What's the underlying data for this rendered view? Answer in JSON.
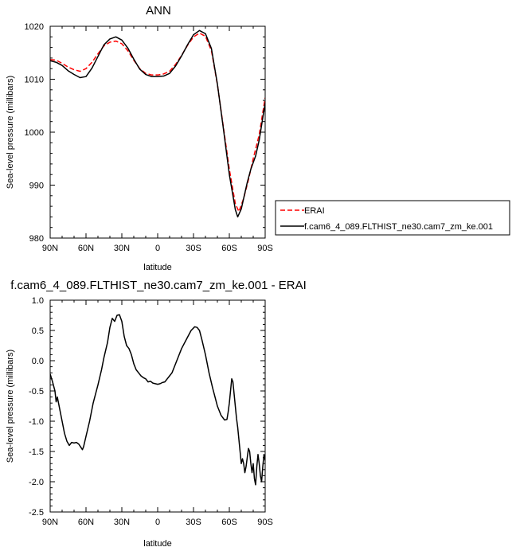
{
  "chart_data": [
    {
      "type": "line",
      "title": "ANN",
      "xlabel": "latitude",
      "ylabel": "Sea-level pressure (millibars)",
      "xlim": [
        -90,
        90
      ],
      "ylim": [
        980,
        1020
      ],
      "x_ticks": [
        -90,
        -60,
        -30,
        0,
        30,
        60,
        90
      ],
      "x_tick_labels": [
        "90N",
        "60N",
        "30N",
        "0",
        "30S",
        "60S",
        "90S"
      ],
      "y_ticks": [
        980,
        990,
        1000,
        1010,
        1020
      ],
      "x_note": "x increases from 90N (left) to 90S (right); negative = north",
      "legend_position": "right, outside plot",
      "series": [
        {
          "name": "ERAI",
          "color": "#ff0000",
          "style": "dashed",
          "points": [
            [
              -90,
              1013.7
            ],
            [
              -85,
              1013.6
            ],
            [
              -80,
              1013.0
            ],
            [
              -75,
              1012.3
            ],
            [
              -70,
              1011.8
            ],
            [
              -65,
              1011.5
            ],
            [
              -60,
              1012.0
            ],
            [
              -55,
              1013.2
            ],
            [
              -50,
              1014.8
            ],
            [
              -45,
              1016.3
            ],
            [
              -40,
              1017.0
            ],
            [
              -35,
              1017.2
            ],
            [
              -30,
              1016.7
            ],
            [
              -25,
              1015.4
            ],
            [
              -20,
              1013.6
            ],
            [
              -15,
              1012.0
            ],
            [
              -10,
              1011.1
            ],
            [
              -5,
              1010.8
            ],
            [
              0,
              1010.8
            ],
            [
              5,
              1011.0
            ],
            [
              10,
              1011.5
            ],
            [
              15,
              1012.8
            ],
            [
              20,
              1014.5
            ],
            [
              25,
              1016.4
            ],
            [
              30,
              1018.0
            ],
            [
              35,
              1018.7
            ],
            [
              40,
              1018.1
            ],
            [
              45,
              1015.4
            ],
            [
              50,
              1009.0
            ],
            [
              55,
              1001.0
            ],
            [
              60,
              993.0
            ],
            [
              65,
              986.5
            ],
            [
              68,
              985.0
            ],
            [
              72,
              987.5
            ],
            [
              76,
              991.0
            ],
            [
              80,
              995.0
            ],
            [
              85,
              999.5
            ],
            [
              90,
              1006.5
            ]
          ]
        },
        {
          "name": "f.cam6_4_089.FLTHIST_ne30.cam7_zm_ke.001",
          "color": "#000000",
          "style": "solid",
          "points": [
            [
              -90,
              1013.5
            ],
            [
              -85,
              1013.2
            ],
            [
              -80,
              1012.6
            ],
            [
              -75,
              1011.6
            ],
            [
              -70,
              1010.9
            ],
            [
              -65,
              1010.3
            ],
            [
              -60,
              1010.5
            ],
            [
              -55,
              1012.1
            ],
            [
              -50,
              1014.3
            ],
            [
              -45,
              1016.5
            ],
            [
              -40,
              1017.6
            ],
            [
              -35,
              1018.0
            ],
            [
              -30,
              1017.4
            ],
            [
              -25,
              1015.9
            ],
            [
              -20,
              1013.8
            ],
            [
              -15,
              1011.9
            ],
            [
              -10,
              1010.9
            ],
            [
              -5,
              1010.5
            ],
            [
              0,
              1010.5
            ],
            [
              5,
              1010.6
            ],
            [
              10,
              1011.1
            ],
            [
              15,
              1012.5
            ],
            [
              20,
              1014.4
            ],
            [
              25,
              1016.5
            ],
            [
              30,
              1018.4
            ],
            [
              35,
              1019.2
            ],
            [
              40,
              1018.6
            ],
            [
              45,
              1015.8
            ],
            [
              50,
              1009.1
            ],
            [
              55,
              1000.7
            ],
            [
              60,
              992.0
            ],
            [
              65,
              985.4
            ],
            [
              67,
              984.0
            ],
            [
              70,
              985.5
            ],
            [
              75,
              990.5
            ],
            [
              78,
              993.0
            ],
            [
              82,
              995.5
            ],
            [
              85,
              998.5
            ],
            [
              90,
              1005.5
            ]
          ]
        }
      ]
    },
    {
      "type": "line",
      "title": "f.cam6_4_089.FLTHIST_ne30.cam7_zm_ke.001 - ERAI",
      "xlabel": "latitude",
      "ylabel": "Sea-level pressure (millibars)",
      "xlim": [
        -90,
        90
      ],
      "ylim": [
        -2.5,
        1.0
      ],
      "x_ticks": [
        -90,
        -60,
        -30,
        0,
        30,
        60,
        90
      ],
      "x_tick_labels": [
        "90N",
        "60N",
        "30N",
        "0",
        "30S",
        "60S",
        "90S"
      ],
      "y_ticks": [
        -2.5,
        -2.0,
        -1.5,
        -1.0,
        -0.5,
        0.0,
        0.5,
        1.0
      ],
      "y_tick_labels": [
        "-2.5",
        "-2.0",
        "-1.5",
        "-1.0",
        "-0.5",
        "0.0",
        "0.5",
        "1.0"
      ],
      "series": [
        {
          "color": "#000000",
          "style": "solid",
          "points": [
            [
              -90,
              -0.22
            ],
            [
              -88,
              -0.35
            ],
            [
              -86,
              -0.5
            ],
            [
              -85,
              -0.68
            ],
            [
              -84,
              -0.6
            ],
            [
              -82,
              -0.8
            ],
            [
              -80,
              -1.0
            ],
            [
              -78,
              -1.2
            ],
            [
              -76,
              -1.33
            ],
            [
              -74,
              -1.4
            ],
            [
              -72,
              -1.35
            ],
            [
              -70,
              -1.36
            ],
            [
              -68,
              -1.35
            ],
            [
              -66,
              -1.38
            ],
            [
              -64,
              -1.44
            ],
            [
              -63,
              -1.47
            ],
            [
              -62,
              -1.42
            ],
            [
              -60,
              -1.25
            ],
            [
              -57,
              -1.0
            ],
            [
              -54,
              -0.7
            ],
            [
              -50,
              -0.4
            ],
            [
              -47,
              -0.15
            ],
            [
              -45,
              0.05
            ],
            [
              -42,
              0.3
            ],
            [
              -40,
              0.55
            ],
            [
              -38,
              0.7
            ],
            [
              -36,
              0.65
            ],
            [
              -34,
              0.75
            ],
            [
              -32,
              0.76
            ],
            [
              -30,
              0.65
            ],
            [
              -28,
              0.4
            ],
            [
              -26,
              0.25
            ],
            [
              -24,
              0.2
            ],
            [
              -22,
              0.1
            ],
            [
              -20,
              -0.05
            ],
            [
              -18,
              -0.15
            ],
            [
              -16,
              -0.2
            ],
            [
              -14,
              -0.25
            ],
            [
              -12,
              -0.28
            ],
            [
              -10,
              -0.3
            ],
            [
              -8,
              -0.35
            ],
            [
              -6,
              -0.34
            ],
            [
              -4,
              -0.37
            ],
            [
              -2,
              -0.38
            ],
            [
              0,
              -0.39
            ],
            [
              2,
              -0.38
            ],
            [
              4,
              -0.36
            ],
            [
              6,
              -0.35
            ],
            [
              8,
              -0.3
            ],
            [
              10,
              -0.25
            ],
            [
              12,
              -0.2
            ],
            [
              14,
              -0.1
            ],
            [
              16,
              0.0
            ],
            [
              18,
              0.1
            ],
            [
              20,
              0.2
            ],
            [
              24,
              0.35
            ],
            [
              28,
              0.5
            ],
            [
              31,
              0.56
            ],
            [
              33,
              0.55
            ],
            [
              35,
              0.5
            ],
            [
              37,
              0.35
            ],
            [
              40,
              0.1
            ],
            [
              43,
              -0.2
            ],
            [
              46,
              -0.45
            ],
            [
              48,
              -0.6
            ],
            [
              50,
              -0.75
            ],
            [
              53,
              -0.9
            ],
            [
              56,
              -0.98
            ],
            [
              58,
              -0.97
            ],
            [
              59,
              -0.85
            ],
            [
              60,
              -0.7
            ],
            [
              61,
              -0.5
            ],
            [
              62,
              -0.3
            ],
            [
              63,
              -0.35
            ],
            [
              64,
              -0.55
            ],
            [
              65,
              -0.75
            ],
            [
              66,
              -0.95
            ],
            [
              67,
              -1.1
            ],
            [
              68,
              -1.3
            ],
            [
              69,
              -1.5
            ],
            [
              70,
              -1.7
            ],
            [
              71,
              -1.62
            ],
            [
              72,
              -1.7
            ],
            [
              73,
              -1.85
            ],
            [
              74,
              -1.75
            ],
            [
              75,
              -1.6
            ],
            [
              76,
              -1.45
            ],
            [
              77,
              -1.5
            ],
            [
              78,
              -1.7
            ],
            [
              79,
              -1.85
            ],
            [
              80,
              -1.7
            ],
            [
              81,
              -1.95
            ],
            [
              82,
              -2.05
            ],
            [
              83,
              -1.75
            ],
            [
              84,
              -1.55
            ],
            [
              85,
              -1.7
            ],
            [
              86,
              -1.9
            ],
            [
              87,
              -2.0
            ],
            [
              88,
              -1.75
            ],
            [
              89,
              -1.55
            ],
            [
              90,
              -1.65
            ]
          ]
        }
      ]
    }
  ]
}
